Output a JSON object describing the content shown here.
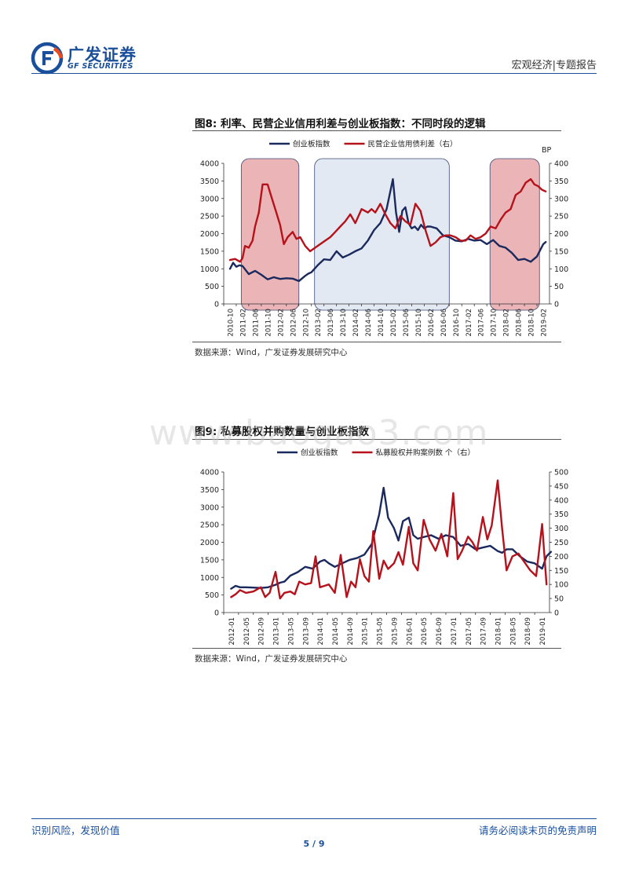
{
  "header": {
    "logo_cn": "广发证券",
    "logo_en": "GF SECURITIES",
    "right_text": "宏观经济|专题报告"
  },
  "watermark": "www.baogao3.com",
  "colors": {
    "navy": "#1b2a5e",
    "red": "#b5121b",
    "brand": "#1a4f9c",
    "pink_shade": "#e8a8aa",
    "blue_shade": "#dfe6f0"
  },
  "figure8": {
    "title": "图8: 利率、民营企业信用利差与创业板指数：不同时段的逻辑",
    "source": "数据来源：Wind，广发证券发展研究中心"
  },
  "figure9": {
    "title": "图9: 私募股权并购数量与创业板指数",
    "source": "数据来源：Wind，广发证券发展研究中心"
  },
  "footer": {
    "left": "识别风险，发现价值",
    "right": "请务必阅读末页的免责声明",
    "page": "5 / 9"
  },
  "chart_data": [
    {
      "type": "line",
      "legend_position": "top",
      "y_right_label": "BP",
      "ylim": [
        0,
        4000
      ],
      "ylim_right": [
        0,
        400
      ],
      "y_ticks": [
        "4000",
        "3500",
        "3000",
        "2500",
        "2000",
        "1500",
        "1000",
        "500",
        "0"
      ],
      "y_right_ticks": [
        "400",
        "350",
        "300",
        "250",
        "200",
        "150",
        "100",
        "50",
        "0"
      ],
      "categories": [
        "2010-10",
        "2011-02",
        "2011-06",
        "2011-10",
        "2012-02",
        "2012-06",
        "2012-10",
        "2013-02",
        "2013-06",
        "2013-10",
        "2014-02",
        "2014-06",
        "2014-10",
        "2015-02",
        "2015-06",
        "2015-10",
        "2016-02",
        "2016-06",
        "2016-10",
        "2017-02",
        "2017-06",
        "2017-10",
        "2018-02",
        "2018-06",
        "2018-10",
        "2019-02"
      ],
      "shaded_periods": [
        {
          "from": 0.9,
          "to": 5.5,
          "color": "pink"
        },
        {
          "from": 6.75,
          "to": 17.5,
          "color": "blue"
        },
        {
          "from": 20.75,
          "to": 24.7,
          "color": "pink"
        }
      ],
      "series": [
        {
          "name": "创业板指数",
          "axis": "left",
          "color": "#1b2a5e",
          "x": [
            0,
            0.25,
            0.5,
            0.75,
            1,
            1.5,
            2,
            2.5,
            3,
            3.5,
            4,
            4.5,
            5,
            5.5,
            6,
            6.25,
            6.5,
            7,
            7.5,
            8,
            8.5,
            9,
            9.5,
            10,
            10.5,
            11,
            11.5,
            12,
            12.5,
            13,
            13.25,
            13.5,
            13.75,
            14,
            14.25,
            14.5,
            14.75,
            15,
            15.25,
            15.5,
            15.75,
            16,
            16.5,
            17,
            17.5,
            18,
            18.5,
            19,
            19.5,
            20,
            20.5,
            21,
            21.5,
            22,
            22.5,
            23,
            23.5,
            24,
            24.5,
            25,
            25.2
          ],
          "values": [
            1000,
            1170,
            1060,
            1100,
            1080,
            850,
            940,
            830,
            700,
            760,
            710,
            730,
            720,
            650,
            800,
            860,
            900,
            1100,
            1270,
            1250,
            1500,
            1320,
            1400,
            1500,
            1580,
            1800,
            2100,
            2300,
            2700,
            3550,
            2600,
            2050,
            2650,
            2750,
            2300,
            2150,
            2200,
            2100,
            2250,
            2150,
            2200,
            2200,
            2150,
            1950,
            1900,
            1800,
            1780,
            1850,
            1800,
            1820,
            1700,
            1820,
            1650,
            1600,
            1450,
            1250,
            1280,
            1200,
            1350,
            1700,
            1760
          ]
        },
        {
          "name": "民营企业信用债利差（右）",
          "axis": "right",
          "color": "#b5121b",
          "x": [
            0,
            0.4,
            0.8,
            1,
            1.2,
            1.5,
            1.8,
            2,
            2.3,
            2.6,
            3,
            3.3,
            3.7,
            4,
            4.3,
            4.6,
            5,
            5.3,
            5.6,
            6,
            6.4,
            6.8,
            7.2,
            7.6,
            8,
            8.4,
            8.8,
            9.2,
            9.6,
            10,
            10.5,
            11,
            11.3,
            11.6,
            12,
            12.4,
            12.8,
            13.2,
            13.6,
            14,
            14.4,
            14.8,
            15.2,
            15.6,
            16,
            16.4,
            16.8,
            17.2,
            17.6,
            18,
            18.4,
            18.8,
            19.2,
            19.6,
            20,
            20.4,
            20.8,
            21.2,
            21.6,
            22,
            22.4,
            22.8,
            23.2,
            23.6,
            24,
            24.3,
            24.6,
            24.9,
            25.2
          ],
          "values": [
            125,
            128,
            120,
            130,
            165,
            160,
            180,
            220,
            260,
            340,
            340,
            305,
            260,
            225,
            170,
            190,
            205,
            185,
            190,
            165,
            150,
            160,
            170,
            180,
            190,
            205,
            220,
            235,
            255,
            230,
            270,
            260,
            270,
            260,
            285,
            255,
            230,
            215,
            250,
            235,
            225,
            285,
            265,
            210,
            165,
            175,
            190,
            195,
            195,
            190,
            180,
            180,
            195,
            185,
            190,
            200,
            220,
            215,
            240,
            260,
            270,
            310,
            320,
            345,
            355,
            340,
            335,
            325,
            320
          ]
        }
      ]
    },
    {
      "type": "line",
      "legend_position": "top",
      "ylim": [
        0,
        4000
      ],
      "ylim_right": [
        0,
        500
      ],
      "y_ticks": [
        "4000",
        "3500",
        "3000",
        "2500",
        "2000",
        "1500",
        "1000",
        "500",
        "0"
      ],
      "y_right_ticks": [
        "500",
        "450",
        "400",
        "350",
        "300",
        "250",
        "200",
        "150",
        "100",
        "50",
        "0"
      ],
      "categories": [
        "2012-01",
        "2012-05",
        "2012-09",
        "2013-01",
        "2013-05",
        "2013-09",
        "2014-01",
        "2014-05",
        "2014-09",
        "2015-01",
        "2015-05",
        "2015-09",
        "2016-01",
        "2016-05",
        "2016-09",
        "2017-01",
        "2017-05",
        "2017-09",
        "2018-01",
        "2018-05",
        "2018-09",
        "2019-01"
      ],
      "series": [
        {
          "name": "创业板指数",
          "axis": "left",
          "color": "#1b2a5e",
          "x": [
            0,
            0.3,
            0.6,
            1,
            1.5,
            2,
            2.5,
            3,
            3.3,
            3.6,
            4,
            4.5,
            5,
            5.5,
            6,
            6.3,
            6.6,
            7,
            7.5,
            8,
            8.5,
            9,
            9.5,
            10,
            10.3,
            10.6,
            11,
            11.3,
            11.6,
            12,
            12.3,
            12.6,
            13,
            13.5,
            14,
            14.5,
            15,
            15.5,
            16,
            16.5,
            17,
            17.5,
            18,
            18.3,
            18.6,
            19,
            19.5,
            20,
            20.5,
            21,
            21.3,
            21.6
          ],
          "values": [
            680,
            760,
            720,
            720,
            710,
            700,
            720,
            790,
            850,
            880,
            1050,
            1150,
            1300,
            1250,
            1450,
            1500,
            1400,
            1300,
            1400,
            1500,
            1550,
            1650,
            1950,
            2800,
            3550,
            2700,
            2400,
            2050,
            2600,
            2700,
            2200,
            2100,
            2150,
            2200,
            2100,
            2200,
            2150,
            1900,
            1950,
            1800,
            1850,
            1900,
            1750,
            1700,
            1800,
            1800,
            1600,
            1450,
            1400,
            1250,
            1600,
            1730
          ]
        },
        {
          "name": "私募股权并购案例数 个（右）",
          "axis": "right",
          "color": "#b5121b",
          "x": [
            0,
            0.3,
            0.6,
            1,
            1.5,
            2,
            2.3,
            2.6,
            3,
            3.3,
            3.6,
            4,
            4.3,
            4.6,
            5,
            5.4,
            5.7,
            6,
            6.3,
            6.6,
            7,
            7.4,
            7.8,
            8.1,
            8.4,
            8.7,
            9,
            9.3,
            9.6,
            10,
            10.3,
            10.6,
            11,
            11.3,
            11.6,
            12,
            12.3,
            12.6,
            13,
            13.4,
            13.8,
            14.2,
            14.6,
            15,
            15.3,
            15.6,
            16,
            16.3,
            16.6,
            17,
            17.3,
            17.6,
            18,
            18.3,
            18.6,
            19,
            19.4,
            19.8,
            20.2,
            20.6,
            21,
            21.3
          ],
          "values": [
            55,
            65,
            80,
            70,
            75,
            90,
            55,
            70,
            145,
            50,
            70,
            75,
            65,
            110,
            100,
            105,
            200,
            90,
            95,
            100,
            70,
            205,
            55,
            110,
            90,
            190,
            130,
            110,
            290,
            120,
            185,
            155,
            175,
            215,
            170,
            305,
            175,
            150,
            330,
            260,
            220,
            280,
            200,
            425,
            190,
            220,
            270,
            250,
            220,
            340,
            260,
            310,
            470,
            300,
            150,
            200,
            210,
            180,
            150,
            130,
            315,
            100
          ]
        }
      ]
    }
  ]
}
